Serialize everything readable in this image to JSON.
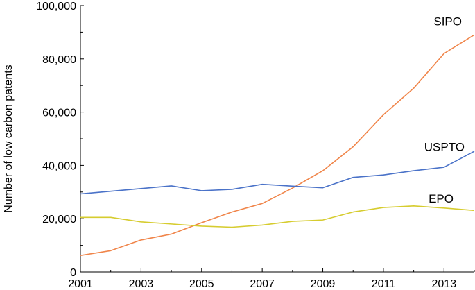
{
  "chart_data": {
    "type": "line",
    "title": "",
    "xlabel": "",
    "ylabel": "Number of low carbon patents",
    "xlim": [
      2001,
      2014
    ],
    "ylim": [
      0,
      100000
    ],
    "x_tick_labels": [
      "2001",
      "2003",
      "2005",
      "2007",
      "2009",
      "2011",
      "2013"
    ],
    "y_tick_labels": [
      "0",
      "20,000",
      "40,000",
      "60,000",
      "80,000",
      "100,000"
    ],
    "x": [
      2001,
      2002,
      2003,
      2004,
      2005,
      2006,
      2007,
      2008,
      2009,
      2010,
      2011,
      2012,
      2013,
      2014
    ],
    "grid": false,
    "legend": "inline labels at line ends",
    "series": [
      {
        "name": "SIPO",
        "color": "#f0854a",
        "values": [
          6200,
          8000,
          12000,
          14200,
          18500,
          22500,
          25700,
          31500,
          38000,
          47000,
          59000,
          69000,
          82000,
          89000
        ]
      },
      {
        "name": "USPTO",
        "color": "#4a72c8",
        "values": [
          29300,
          30300,
          31300,
          32300,
          30500,
          31000,
          32900,
          32200,
          31600,
          35500,
          36400,
          38000,
          39300,
          45300
        ]
      },
      {
        "name": "EPO",
        "color": "#d6cc2f",
        "values": [
          20500,
          20500,
          18800,
          18000,
          17200,
          16800,
          17600,
          19000,
          19500,
          22500,
          24200,
          24800,
          24000,
          23100
        ]
      }
    ]
  }
}
